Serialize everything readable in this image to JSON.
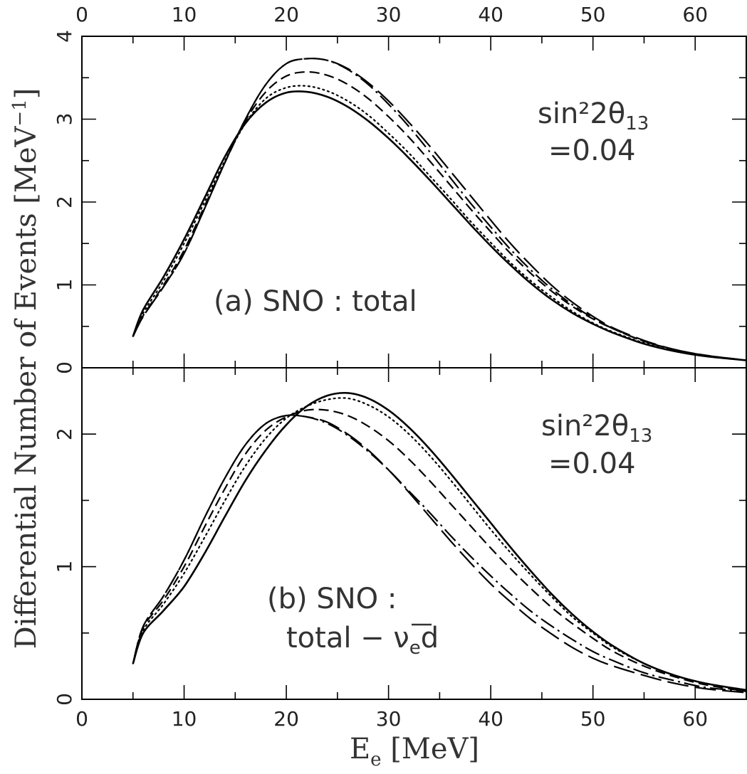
{
  "chart_data": [
    {
      "type": "line",
      "panel": "a",
      "annotation": "(a) SNO : total",
      "param_label": {
        "prefix": "sin²2θ",
        "subscript": "13",
        "value": "=0.04"
      },
      "ylabel": "Differential Number of Events [MeV",
      "ylabel_sup": "−1",
      "ylabel_close": "]",
      "xlim": [
        0,
        65
      ],
      "ylim": [
        0,
        4
      ],
      "x_ticks": [
        0,
        10,
        20,
        30,
        40,
        50,
        60
      ],
      "y_ticks": [
        0,
        1,
        2,
        3,
        4
      ],
      "x": [
        5,
        6,
        8,
        10,
        12,
        14,
        16,
        18,
        20,
        22,
        24,
        26,
        28,
        30,
        32,
        34,
        36,
        38,
        40,
        42,
        44,
        46,
        48,
        50,
        52,
        55,
        58,
        61,
        65
      ],
      "series": [
        {
          "style": "solid",
          "values": [
            0.38,
            0.7,
            1.1,
            1.55,
            2.05,
            2.55,
            2.95,
            3.2,
            3.32,
            3.33,
            3.27,
            3.15,
            2.98,
            2.77,
            2.53,
            2.27,
            2.0,
            1.73,
            1.47,
            1.23,
            1.01,
            0.82,
            0.66,
            0.53,
            0.42,
            0.29,
            0.2,
            0.14,
            0.09
          ]
        },
        {
          "style": "dotted",
          "values": [
            0.38,
            0.66,
            1.05,
            1.5,
            2.0,
            2.5,
            2.95,
            3.25,
            3.38,
            3.4,
            3.34,
            3.22,
            3.05,
            2.83,
            2.59,
            2.32,
            2.05,
            1.77,
            1.51,
            1.26,
            1.04,
            0.85,
            0.68,
            0.54,
            0.43,
            0.3,
            0.2,
            0.14,
            0.09
          ]
        },
        {
          "style": "dashed",
          "values": [
            0.38,
            0.63,
            1.0,
            1.42,
            1.95,
            2.48,
            2.98,
            3.33,
            3.52,
            3.57,
            3.53,
            3.42,
            3.25,
            3.03,
            2.78,
            2.5,
            2.21,
            1.92,
            1.64,
            1.37,
            1.13,
            0.92,
            0.74,
            0.59,
            0.47,
            0.32,
            0.22,
            0.15,
            0.09
          ]
        },
        {
          "style": "dashdot",
          "values": [
            0.38,
            0.62,
            0.98,
            1.38,
            1.92,
            2.48,
            3.0,
            3.42,
            3.67,
            3.73,
            3.71,
            3.6,
            3.42,
            3.18,
            2.91,
            2.61,
            2.3,
            1.99,
            1.7,
            1.42,
            1.17,
            0.95,
            0.76,
            0.6,
            0.47,
            0.32,
            0.22,
            0.15,
            0.09
          ]
        },
        {
          "style": "longdash",
          "values": [
            0.38,
            0.62,
            0.98,
            1.38,
            1.92,
            2.48,
            3.0,
            3.42,
            3.67,
            3.73,
            3.71,
            3.61,
            3.44,
            3.22,
            2.96,
            2.68,
            2.38,
            2.08,
            1.78,
            1.49,
            1.23,
            0.99,
            0.79,
            0.62,
            0.48,
            0.33,
            0.22,
            0.15,
            0.09
          ]
        }
      ]
    },
    {
      "type": "line",
      "panel": "b",
      "annotation_line1": "(b) SNO :",
      "annotation_line2": "total − ",
      "annotation_nu": "ν",
      "annotation_nu_sub": "e",
      "annotation_tail": "d",
      "param_label": {
        "prefix": "sin²2θ",
        "subscript": "13",
        "value": "=0.04"
      },
      "xlabel": "E",
      "xlabel_sub": "e",
      "xlabel_unit": " [MeV]",
      "xlim": [
        0,
        65
      ],
      "ylim": [
        0,
        2.5
      ],
      "x_ticks": [
        0,
        10,
        20,
        30,
        40,
        50,
        60
      ],
      "y_ticks": [
        0,
        1,
        2
      ],
      "x": [
        5,
        6,
        8,
        10,
        12,
        14,
        16,
        18,
        20,
        22,
        24,
        26,
        28,
        30,
        32,
        34,
        36,
        38,
        40,
        42,
        44,
        46,
        48,
        50,
        52,
        55,
        58,
        61,
        65
      ],
      "series": [
        {
          "style": "solid",
          "values": [
            0.27,
            0.5,
            0.67,
            0.85,
            1.1,
            1.38,
            1.65,
            1.88,
            2.07,
            2.21,
            2.29,
            2.31,
            2.27,
            2.18,
            2.05,
            1.89,
            1.71,
            1.52,
            1.33,
            1.14,
            0.96,
            0.79,
            0.64,
            0.51,
            0.4,
            0.27,
            0.18,
            0.12,
            0.07
          ]
        },
        {
          "style": "dotted",
          "values": [
            0.27,
            0.52,
            0.72,
            0.95,
            1.22,
            1.5,
            1.76,
            1.97,
            2.12,
            2.21,
            2.26,
            2.27,
            2.22,
            2.13,
            2.0,
            1.84,
            1.66,
            1.47,
            1.28,
            1.1,
            0.93,
            0.77,
            0.62,
            0.5,
            0.39,
            0.27,
            0.18,
            0.12,
            0.07
          ]
        },
        {
          "style": "dashed",
          "values": [
            0.27,
            0.54,
            0.75,
            1.0,
            1.3,
            1.59,
            1.85,
            2.03,
            2.13,
            2.18,
            2.18,
            2.14,
            2.06,
            1.95,
            1.81,
            1.65,
            1.48,
            1.31,
            1.14,
            0.98,
            0.83,
            0.69,
            0.57,
            0.46,
            0.36,
            0.25,
            0.17,
            0.11,
            0.06
          ]
        },
        {
          "style": "dashdot",
          "values": [
            0.27,
            0.55,
            0.78,
            1.05,
            1.37,
            1.67,
            1.92,
            2.08,
            2.14,
            2.13,
            2.08,
            1.99,
            1.87,
            1.73,
            1.57,
            1.41,
            1.24,
            1.08,
            0.93,
            0.79,
            0.66,
            0.55,
            0.45,
            0.36,
            0.29,
            0.2,
            0.14,
            0.09,
            0.06
          ]
        },
        {
          "style": "longdash",
          "values": [
            0.27,
            0.55,
            0.78,
            1.05,
            1.37,
            1.67,
            1.92,
            2.08,
            2.14,
            2.13,
            2.09,
            2.0,
            1.88,
            1.73,
            1.56,
            1.38,
            1.2,
            1.03,
            0.87,
            0.73,
            0.6,
            0.49,
            0.39,
            0.31,
            0.25,
            0.18,
            0.12,
            0.08,
            0.05
          ]
        }
      ]
    }
  ]
}
